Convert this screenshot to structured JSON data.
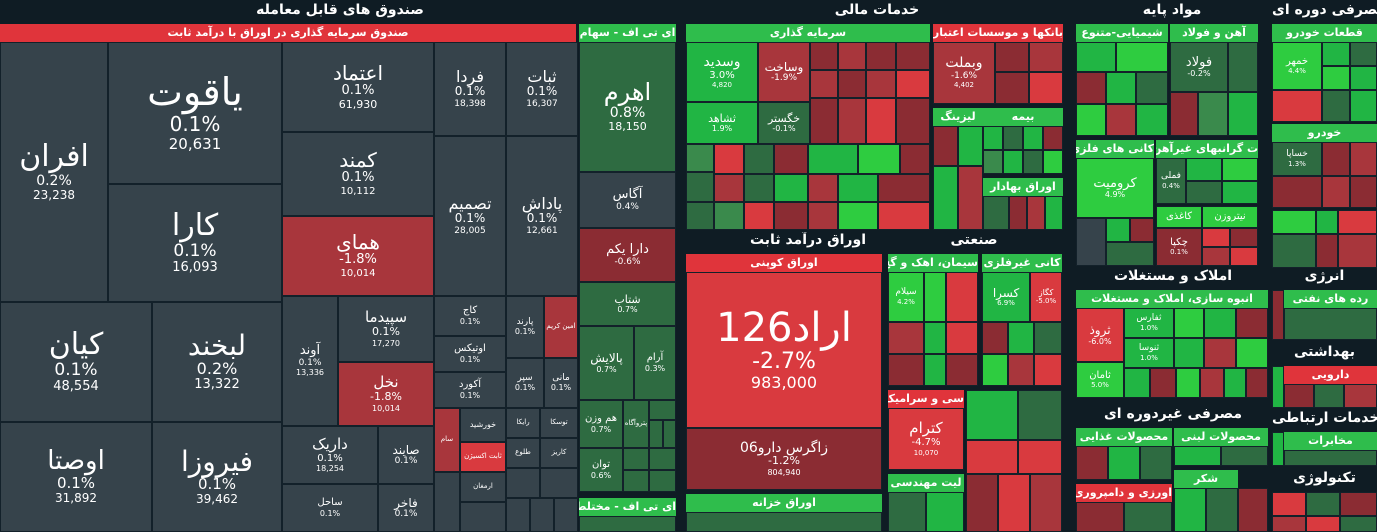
{
  "sections": {
    "etf": "صندوق های قابل معامله",
    "financial": "خدمات مالی",
    "basic": "مواد پایه",
    "cyclical": "مصرفی دوره ای",
    "fixed_income": "اوراق درآمد ثابت",
    "industrial": "صنعتی",
    "realestate": "املاک و مستغلات",
    "noncyclical": "مصرفی غیردوره ای",
    "energy": "انرژی",
    "health": "بهداشتی",
    "telecom": "خدمات ارتباطی",
    "tech": "تکنولوژی"
  },
  "groups": {
    "fixed_funds": "صندوق سرمایه گذاری در اوراق با درآمد ثابت",
    "etf_stock": "ای تی اف - سهام",
    "etf_mixed": "ای تی اف - مختلط",
    "investment": "سرمایه گذاری",
    "banks": "بانکها و موسسات اعتباری",
    "chemical": "شیمیایی-متنوع",
    "steel": "آهن و فولاد",
    "carparts": "قطعات خودرو",
    "coupon": "اوراق کوپنی",
    "treasury": "اوراق خزانه",
    "leasing": "لیزینگ",
    "insurance": "بیمه",
    "securities": "اوراق بهادار",
    "metal_minerals": "کانی های فلزی",
    "heavy_metals": "ت گرانبهای غیرآهن",
    "automobile": "خودرو",
    "cement": "سیمان، اهک و گچ",
    "nonmetal": "کانی غیرفلزی",
    "housing": "انبوه سازی، املاک و مستغلات",
    "food": "محصولات غذایی",
    "dairy": "محصولات لبنی",
    "sugar": "شکر",
    "petroleum": "رده های نفتی",
    "pharma": "دارویی",
    "communications": "مخابرات",
    "ceramics": "سی و سرامیک",
    "pipes": "لیت مهندسی",
    "agriculture": "اورزی و دامپروری",
    "nonferrous": "کانی غیرفلزی"
  },
  "tiles": {
    "afran": {
      "name": "افران",
      "pct": "0.2%",
      "val": "23,238"
    },
    "yaghut": {
      "name": "یاقوت",
      "pct": "0.1%",
      "val": "20,631"
    },
    "kara": {
      "name": "کارا",
      "pct": "0.1%",
      "val": "16,093"
    },
    "kian": {
      "name": "کیان",
      "pct": "0.1%",
      "val": "48,554"
    },
    "labkhand": {
      "name": "لبخند",
      "pct": "0.2%",
      "val": "13,322"
    },
    "ousta": {
      "name": "اوصتا",
      "pct": "0.1%",
      "val": "31,892"
    },
    "firouza": {
      "name": "فیروزا",
      "pct": "0.1%",
      "val": "39,462"
    },
    "etemad": {
      "name": "اعتماد",
      "pct": "0.1%",
      "val": "61,930"
    },
    "kamand": {
      "name": "کمند",
      "pct": "0.1%",
      "val": "10,112"
    },
    "homay": {
      "name": "همای",
      "pct": "-1.8%",
      "val": "10,014"
    },
    "farda": {
      "name": "فردا",
      "pct": "0.1%",
      "val": "18,398"
    },
    "sabat": {
      "name": "ثبات",
      "pct": "0.1%",
      "val": "16,307"
    },
    "tasmim": {
      "name": "تصمیم",
      "pct": "0.1%",
      "val": "28,005"
    },
    "padash": {
      "name": "پاداش",
      "pct": "0.1%",
      "val": "12,661"
    },
    "sepidma": {
      "name": "سپیدما",
      "pct": "0.1%",
      "val": "17,270"
    },
    "avand": {
      "name": "آوند",
      "pct": "0.1%",
      "val": "13,336"
    },
    "nakhl": {
      "name": "نخل",
      "pct": "-1.8%",
      "val": "10,014"
    },
    "kaj": {
      "name": "کاج",
      "pct": "0.1%"
    },
    "parand": {
      "name": "پارند",
      "pct": "0.1%"
    },
    "amin_karim": {
      "name": "امین کریم"
    },
    "otinix": {
      "name": "اوتیکس",
      "pct": "0.1%"
    },
    "akord": {
      "name": "آکورد",
      "pct": "0.1%"
    },
    "separ": {
      "name": "سپر",
      "pct": "0.1%"
    },
    "mani": {
      "name": "مانی",
      "pct": "0.1%"
    },
    "daryek": {
      "name": "داریک",
      "pct": "0.1%",
      "val": "18,254"
    },
    "saiend": {
      "name": "صایند",
      "pct": "0.1%"
    },
    "sam": {
      "name": "سام"
    },
    "khorshid": {
      "name": "خورشید"
    },
    "sabet_ekserzan": {
      "name": "ثابت اکسیژن"
    },
    "sahel": {
      "name": "ساحل",
      "pct": "0.1%"
    },
    "fakher": {
      "name": "فاخر",
      "pct": "0.1%"
    },
    "armaghan": {
      "name": "ارمغان"
    },
    "tousika": {
      "name": "توسکا"
    },
    "karizan": {
      "name": "کاریز"
    },
    "toloo": {
      "name": "طلوع"
    },
    "raika": {
      "name": "رایکا"
    },
    "ahrom": {
      "name": "اهرم",
      "pct": "0.8%",
      "val": "18,150"
    },
    "agas": {
      "name": "آگاس",
      "pct": "0.4%"
    },
    "dara_yekom": {
      "name": "دارا یکم",
      "pct": "-0.6%"
    },
    "shetab": {
      "name": "شتاب",
      "pct": "0.7%"
    },
    "palayesh": {
      "name": "پالایش",
      "pct": "0.7%"
    },
    "aram": {
      "name": "آرام",
      "pct": "0.3%"
    },
    "ham_vazn": {
      "name": "هم وزن",
      "pct": "0.7%"
    },
    "tavan": {
      "name": "توان",
      "pct": "0.6%"
    },
    "poyagaan": {
      "name": "پتروآگاه"
    },
    "vasdid": {
      "name": "وسدید",
      "pct": "3.0%",
      "val": "4,820"
    },
    "vsakht": {
      "name": "وساخت",
      "pct": "-1.9%"
    },
    "tshahad": {
      "name": "ثشاهد",
      "pct": "1.9%"
    },
    "khgostar": {
      "name": "خگستر",
      "pct": "-0.1%"
    },
    "vbemellat": {
      "name": "وبملت",
      "pct": "-1.6%",
      "val": "4,402"
    },
    "erad126": {
      "name": "اراد126",
      "pct": "-2.7%",
      "val": "983,000"
    },
    "zagros06": {
      "name": "زاگرس دارو06",
      "pct": "-1.2%",
      "val": "804,940"
    },
    "koromite": {
      "name": "کرومیت",
      "pct": "4.9%"
    },
    "foolad": {
      "name": "فولاد",
      "pct": "-0.2%"
    },
    "khamhor": {
      "name": "خمهر",
      "pct": "4.4%"
    },
    "kastra": {
      "name": "کسرا",
      "pct": "6.9%"
    },
    "kontram": {
      "name": "کترام",
      "pct": "-4.7%",
      "val": "10,070"
    },
    "sirooz": {
      "name": "ثروذ",
      "pct": "-6.0%"
    },
    "saman": {
      "name": "ثامان",
      "pct": "5.0%"
    },
    "sfars": {
      "name": "ثفارس",
      "pct": "1.0%"
    },
    "sanoosa": {
      "name": "ثنوسا",
      "pct": "1.0%"
    },
    "felmi": {
      "name": "فملی",
      "pct": "0.4%"
    },
    "chakpa": {
      "name": "چکپا",
      "pct": "0.1%"
    },
    "kaghazi": {
      "name": "کاغذی"
    },
    "nirouzan": {
      "name": "نیتروزن"
    },
    "khsapa": {
      "name": "خساپا",
      "pct": "1.3%"
    },
    "daroui": {
      "name": "دارویی"
    },
    "mokhaberat": {
      "name": "مخابرات"
    },
    "sylam": {
      "name": "سیلام",
      "pct": "4.2%"
    },
    "kagz": {
      "name": "کگاز",
      "pct": "-5.0%"
    },
    "lizing": {
      "name": "لیزینگ"
    },
    "bimeh": {
      "name": "بیمه"
    }
  }
}
